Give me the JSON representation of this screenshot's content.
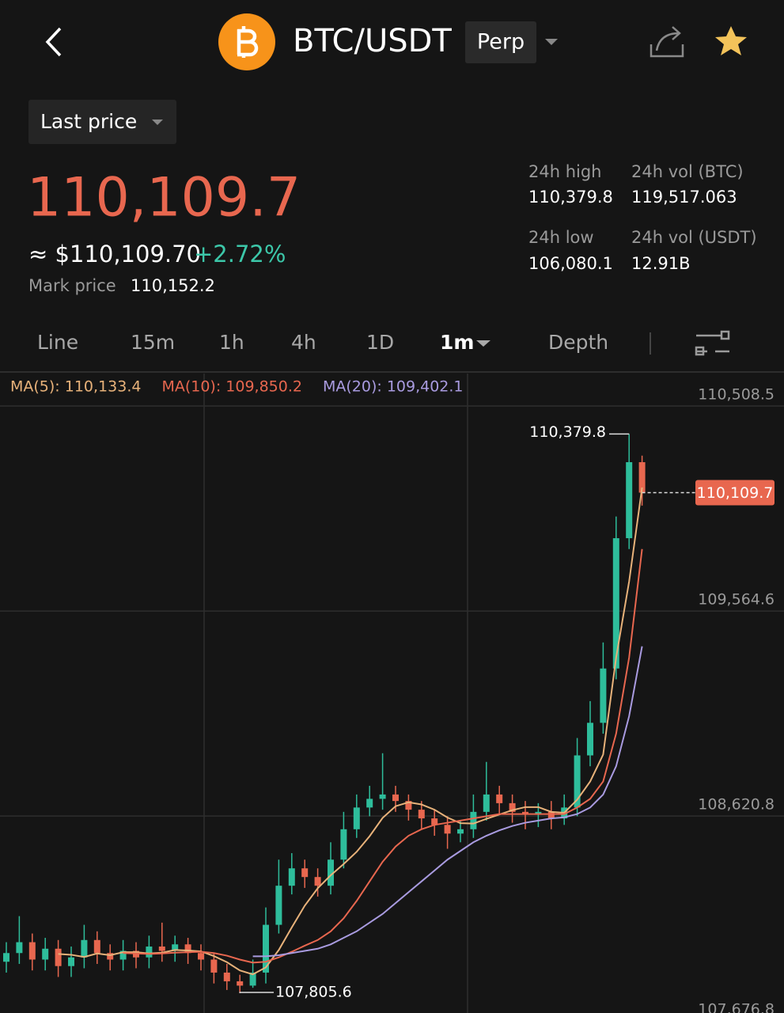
{
  "header": {
    "symbol": "BTC/USDT",
    "contract": "Perp"
  },
  "price_panel": {
    "price_mode": "Last price",
    "last_price": "110,109.7",
    "usd_price": "≈ $110,109.70",
    "change": "+2.72%",
    "mark_label": "Mark price",
    "mark_value": "110,152.2"
  },
  "stats": [
    {
      "label": "24h high",
      "value": "110,379.8"
    },
    {
      "label": "24h vol (BTC)",
      "value": "119,517.063"
    },
    {
      "label": "24h low",
      "value": "106,080.1"
    },
    {
      "label": "24h vol (USDT)",
      "value": "12.91B"
    }
  ],
  "tabs": [
    "Line",
    "15m",
    "1h",
    "4h",
    "1D",
    "1m",
    "Depth"
  ],
  "chart_data": {
    "type": "candlestick",
    "open": [
      107950,
      107990,
      108040,
      107960,
      108010,
      107930,
      107970,
      108050,
      107990,
      107960,
      108000,
      107970,
      108020,
      108000,
      108030,
      107990,
      107960,
      107900,
      107860,
      107840,
      107900,
      108120,
      108300,
      108380,
      108340,
      108300,
      108420,
      108560,
      108660,
      108700,
      108720,
      108690,
      108650,
      108610,
      108580,
      108540,
      108560,
      108640,
      108720,
      108680,
      108640,
      108630,
      108640,
      108610,
      108660,
      108900,
      109050,
      109300,
      109900,
      110250
    ],
    "high": [
      108040,
      108160,
      108080,
      108060,
      108050,
      108020,
      108120,
      108090,
      108030,
      108050,
      108040,
      108070,
      108130,
      108070,
      108060,
      108030,
      107990,
      107940,
      107890,
      107960,
      108200,
      108420,
      108450,
      108420,
      108380,
      108500,
      108640,
      108720,
      108760,
      108910,
      108760,
      108720,
      108690,
      108650,
      108620,
      108600,
      108720,
      108870,
      108760,
      108720,
      108690,
      108680,
      108690,
      108720,
      108980,
      109150,
      109420,
      110000,
      110379.8,
      110280
    ],
    "low": [
      107900,
      107940,
      107910,
      107910,
      107880,
      107880,
      107920,
      107940,
      107910,
      107910,
      107920,
      107920,
      107950,
      107950,
      107940,
      107910,
      107850,
      107820,
      107805.6,
      107830,
      107850,
      108080,
      108260,
      108290,
      108250,
      108260,
      108380,
      108520,
      108620,
      108650,
      108640,
      108600,
      108560,
      108530,
      108470,
      108500,
      108520,
      108600,
      108630,
      108590,
      108560,
      108570,
      108560,
      108580,
      108620,
      108850,
      109000,
      109250,
      109850,
      110050
    ],
    "close": [
      107990,
      108040,
      107960,
      108010,
      107930,
      107970,
      108050,
      107990,
      107960,
      108000,
      107970,
      108020,
      108000,
      108030,
      107990,
      107960,
      107900,
      107860,
      107840,
      107900,
      108120,
      108300,
      108380,
      108340,
      108300,
      108420,
      108560,
      108660,
      108700,
      108720,
      108690,
      108650,
      108610,
      108580,
      108540,
      108560,
      108640,
      108720,
      108680,
      108640,
      108630,
      108640,
      108610,
      108660,
      108900,
      109050,
      109300,
      109900,
      110250,
      110109.7
    ],
    "up_color": "#2ebd9b",
    "down_color": "#e8674f",
    "series": [
      {
        "name": "MA(5): 110,133.4",
        "color": "#e8b27a",
        "values": [
          null,
          null,
          null,
          null,
          107986,
          107982,
          107972,
          107988,
          107980,
          107994,
          107994,
          107988,
          107992,
          108004,
          108002,
          107998,
          107976,
          107948,
          107910,
          107892,
          107924,
          108004,
          108108,
          108208,
          108288,
          108348,
          108400,
          108456,
          108528,
          108612,
          108666,
          108684,
          108674,
          108650,
          108614,
          108588,
          108586,
          108608,
          108628,
          108648,
          108662,
          108662,
          108640,
          108636,
          108696,
          108780,
          108904,
          109350,
          109700,
          110133.4
        ]
      },
      {
        "name": "MA(10): 109,850.2",
        "color": "#e8674f",
        "values": [
          null,
          null,
          null,
          null,
          null,
          null,
          null,
          null,
          null,
          107990,
          107988,
          107986,
          107988,
          107992,
          107994,
          107996,
          107990,
          107978,
          107960,
          107946,
          107950,
          107970,
          107996,
          108024,
          108050,
          108090,
          108150,
          108230,
          108320,
          108410,
          108480,
          108530,
          108560,
          108580,
          108590,
          108600,
          108610,
          108620,
          108630,
          108630,
          108630,
          108630,
          108630,
          108630,
          108660,
          108700,
          108780,
          109000,
          109350,
          109850.2
        ]
      },
      {
        "name": "MA(20): 109,402.1",
        "color": "#a99be0",
        "values": [
          null,
          null,
          null,
          null,
          null,
          null,
          null,
          null,
          null,
          null,
          null,
          null,
          null,
          null,
          null,
          null,
          null,
          null,
          null,
          107975,
          107975,
          107980,
          107990,
          108000,
          108010,
          108030,
          108060,
          108090,
          108130,
          108170,
          108220,
          108270,
          108320,
          108370,
          108420,
          108460,
          108500,
          108530,
          108555,
          108575,
          108590,
          108600,
          108610,
          108615,
          108630,
          108660,
          108720,
          108850,
          109080,
          109402.1
        ]
      }
    ],
    "ylim": [
      107714,
      110658
    ],
    "yticks": [
      {
        "value": 110508.5,
        "label": "110,508.5"
      },
      {
        "value": 109564.6,
        "label": "109,564.6"
      },
      {
        "value": 108620.8,
        "label": "108,620.8"
      },
      {
        "value": 107676.8,
        "label": "107,676.8"
      }
    ],
    "grid": true,
    "annotations": {
      "high": {
        "value": 110379.8,
        "label": "110,379.8"
      },
      "low": {
        "value": 107805.6,
        "label": "107,805.6"
      },
      "last": {
        "value": 110109.7,
        "label": "110,109.7"
      }
    }
  }
}
